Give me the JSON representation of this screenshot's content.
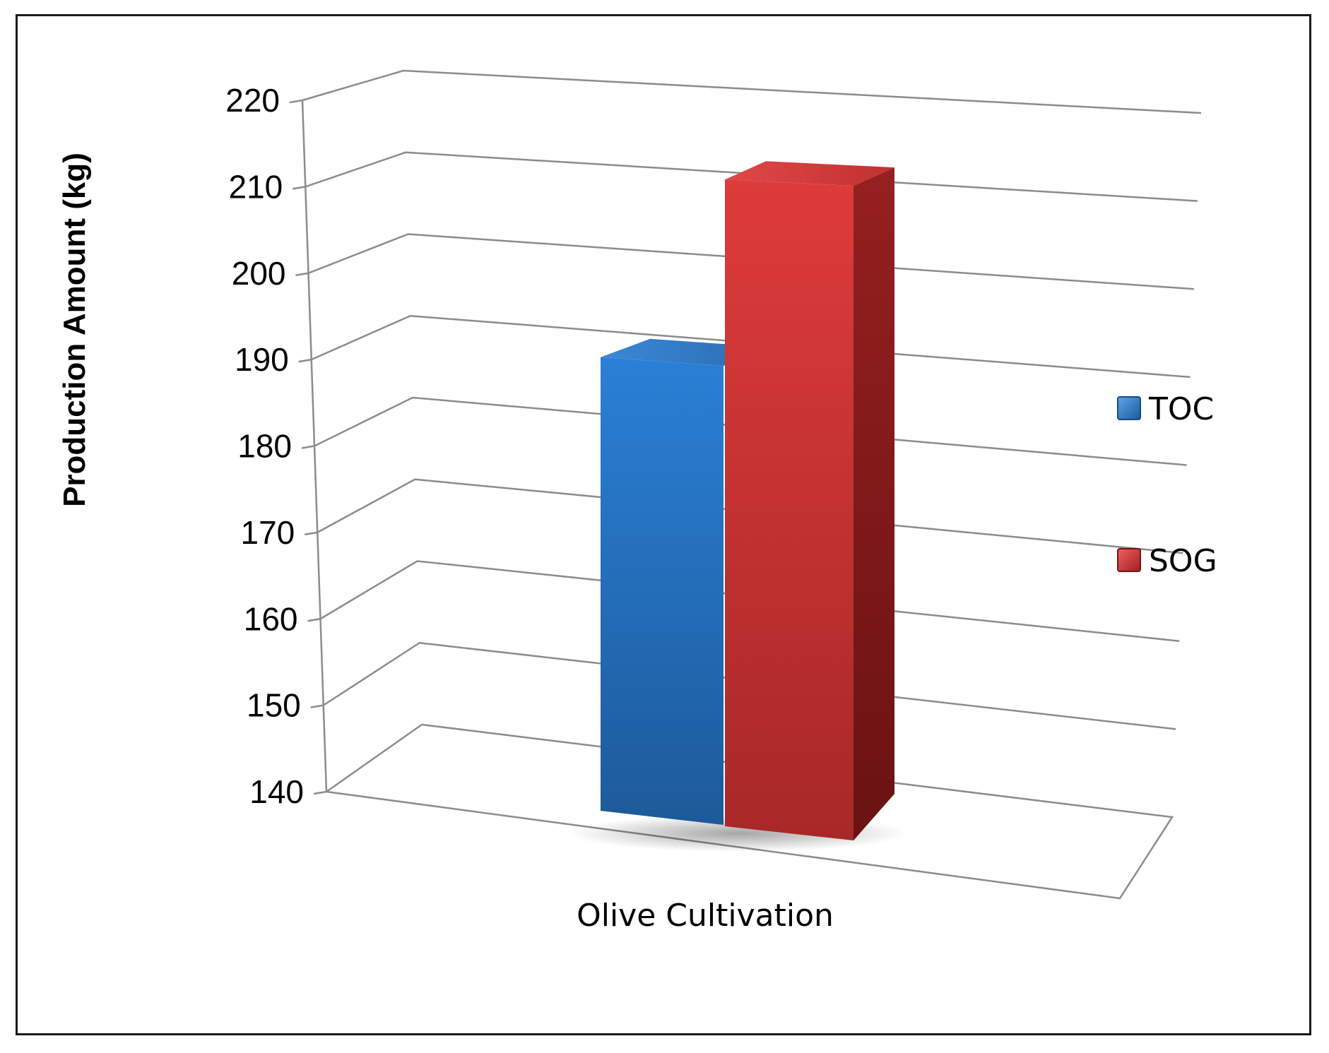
{
  "chart_data": {
    "type": "bar",
    "categories": [
      "Olive Cultivation"
    ],
    "series": [
      {
        "name": "TOC",
        "values": [
          192
        ],
        "color": "#2a78c8"
      },
      {
        "name": "SOG",
        "values": [
          214
        ],
        "color": "#d63535"
      }
    ],
    "xlabel": "Olive Cultivation",
    "ylabel": "Production Amount  (kg)",
    "ylim": [
      140,
      220
    ],
    "yticks": [
      "140",
      "150",
      "160",
      "170",
      "180",
      "190",
      "200",
      "210",
      "220"
    ],
    "grid": true,
    "legend_position": "right",
    "style": "3d-column"
  }
}
